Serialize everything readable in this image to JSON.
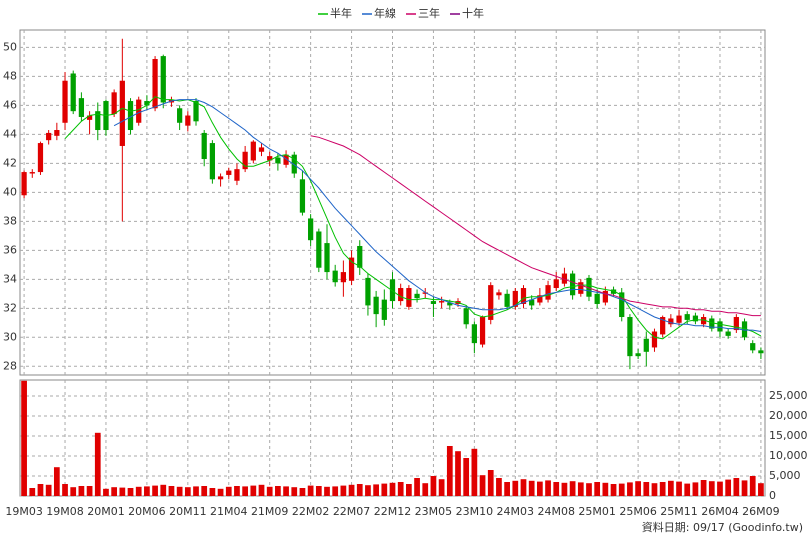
{
  "chart_data": [
    {
      "type": "candlestick",
      "legend": "top",
      "grid": true,
      "up_color": "#e00000",
      "down_color": "#00a000",
      "ylim": [
        27.4,
        51.2
      ],
      "yticks": [
        28,
        30,
        32,
        34,
        36,
        38,
        40,
        42,
        44,
        46,
        48,
        50
      ],
      "open": [
        39.8,
        41.3,
        41.4,
        43.6,
        43.9,
        44.8,
        48.2,
        46.5,
        45.0,
        45.6,
        46.3,
        45.4,
        43.2,
        46.3,
        44.8,
        46.3,
        45.8,
        49.4,
        46.2,
        45.8,
        44.6,
        46.3,
        44.1,
        43.4,
        40.9,
        41.2,
        40.8,
        41.6,
        42.2,
        42.8,
        42.2,
        42.4,
        41.9,
        42.6,
        40.9,
        38.2,
        37.3,
        36.5,
        34.6,
        33.8,
        33.9,
        36.3,
        34.1,
        32.8,
        32.6,
        34.0,
        32.5,
        32.1,
        33.0,
        33.0,
        32.5,
        32.4,
        32.4,
        32.3,
        32.0,
        30.9,
        29.5,
        31.2,
        32.9,
        33.0,
        32.1,
        32.3,
        32.6,
        32.4,
        32.6,
        33.4,
        33.7,
        34.4,
        33.0,
        34.1,
        33.0,
        32.4,
        33.3,
        33.1,
        31.4,
        28.9,
        29.9,
        29.3,
        30.2,
        30.9,
        31.0,
        31.6,
        31.5,
        30.9,
        31.3,
        31.1,
        30.4,
        30.5,
        31.1,
        29.6,
        29.1
      ],
      "high": [
        41.5,
        41.6,
        43.5,
        44.3,
        44.8,
        48.3,
        48.4,
        46.9,
        45.6,
        46.2,
        46.4,
        47.1,
        50.6,
        46.5,
        46.6,
        46.7,
        49.4,
        49.5,
        46.6,
        46.0,
        45.6,
        46.5,
        44.3,
        43.6,
        41.3,
        41.7,
        42.0,
        43.2,
        43.6,
        43.4,
        42.8,
        42.7,
        42.9,
        42.8,
        41.5,
        38.5,
        37.5,
        37.8,
        35.0,
        35.3,
        36.0,
        36.7,
        34.4,
        33.2,
        33.3,
        34.5,
        33.7,
        33.6,
        33.3,
        33.4,
        32.8,
        32.8,
        32.6,
        32.7,
        32.2,
        31.1,
        31.5,
        33.8,
        33.3,
        33.3,
        33.4,
        33.6,
        32.9,
        33.4,
        33.9,
        34.5,
        34.8,
        34.6,
        34.0,
        34.3,
        33.3,
        33.5,
        33.5,
        33.4,
        31.6,
        29.2,
        30.4,
        30.6,
        31.5,
        31.6,
        31.9,
        31.8,
        31.7,
        31.6,
        31.5,
        31.3,
        30.6,
        31.6,
        31.3,
        29.8,
        29.3
      ],
      "low": [
        39.6,
        41.0,
        41.2,
        43.3,
        43.6,
        44.3,
        45.4,
        44.9,
        44.0,
        43.6,
        43.9,
        45.2,
        38.0,
        44.0,
        44.6,
        45.7,
        45.6,
        45.8,
        45.9,
        44.3,
        44.2,
        44.6,
        41.8,
        40.6,
        40.4,
        40.9,
        40.5,
        41.4,
        42.0,
        42.5,
        41.8,
        41.5,
        41.7,
        41.0,
        38.4,
        36.3,
        34.5,
        34.0,
        33.5,
        32.8,
        33.6,
        34.3,
        31.5,
        30.7,
        30.8,
        32.0,
        32.2,
        31.9,
        32.4,
        32.7,
        31.4,
        32.0,
        31.9,
        32.1,
        30.6,
        28.9,
        29.3,
        30.9,
        32.6,
        31.9,
        31.9,
        32.0,
        31.9,
        32.2,
        32.4,
        33.2,
        33.5,
        32.6,
        32.8,
        32.5,
        32.0,
        32.2,
        32.8,
        31.1,
        27.8,
        28.5,
        28.0,
        29.0,
        30.0,
        30.7,
        30.8,
        30.9,
        30.9,
        30.7,
        30.4,
        30.0,
        29.9,
        30.3,
        29.8,
        28.9,
        28.5
      ],
      "close": [
        41.4,
        41.4,
        43.4,
        44.1,
        44.3,
        47.7,
        45.6,
        45.2,
        45.3,
        44.3,
        44.3,
        46.9,
        47.7,
        44.3,
        46.4,
        46.0,
        49.2,
        46.2,
        46.4,
        44.8,
        45.3,
        44.9,
        42.3,
        40.9,
        41.1,
        41.5,
        41.6,
        42.8,
        43.5,
        43.1,
        42.5,
        42.0,
        42.6,
        41.3,
        38.6,
        36.7,
        34.8,
        34.5,
        33.8,
        34.5,
        35.5,
        34.8,
        32.2,
        31.6,
        31.2,
        32.5,
        33.4,
        33.4,
        32.7,
        33.1,
        32.3,
        32.5,
        32.2,
        32.5,
        30.9,
        29.6,
        31.4,
        33.6,
        33.1,
        32.1,
        33.2,
        33.4,
        32.2,
        32.9,
        33.6,
        34.0,
        34.4,
        32.9,
        33.8,
        32.8,
        32.3,
        33.2,
        33.0,
        31.4,
        28.7,
        28.7,
        29.0,
        30.4,
        31.4,
        31.3,
        31.5,
        31.2,
        31.1,
        31.4,
        30.6,
        30.4,
        30.1,
        31.4,
        30.0,
        29.1,
        28.9
      ],
      "series": [
        {
          "name": "半年",
          "color": "#00c000",
          "values": [
            null,
            null,
            null,
            null,
            null,
            43.7,
            44.3,
            44.9,
            45.3,
            45.4,
            45.3,
            45.4,
            45.8,
            45.6,
            45.7,
            46.0,
            46.6,
            46.4,
            46.4,
            46.3,
            46.4,
            46.2,
            45.9,
            44.8,
            43.8,
            43.0,
            42.3,
            41.8,
            41.8,
            42.0,
            42.2,
            42.5,
            42.6,
            42.3,
            41.8,
            40.8,
            39.5,
            38.2,
            36.9,
            35.8,
            35.2,
            34.9,
            34.4,
            34.0,
            33.6,
            33.2,
            32.8,
            32.6,
            32.6,
            32.7,
            32.6,
            32.6,
            32.5,
            32.4,
            32.2,
            31.6,
            31.4,
            31.5,
            31.7,
            31.9,
            32.2,
            32.7,
            32.8,
            32.8,
            32.9,
            33.1,
            33.4,
            33.5,
            33.6,
            33.6,
            33.4,
            33.3,
            33.2,
            32.9,
            32.0,
            31.2,
            30.5,
            30.0,
            29.9,
            30.3,
            30.7,
            31.1,
            31.2,
            31.2,
            31.0,
            30.9,
            30.8,
            30.7,
            30.6,
            30.4,
            30.1
          ]
        },
        {
          "name": "年線",
          "color": "#1e64c8",
          "values": [
            null,
            null,
            null,
            null,
            null,
            null,
            null,
            null,
            null,
            null,
            null,
            44.6,
            44.9,
            45.2,
            45.5,
            45.7,
            45.9,
            46.1,
            46.3,
            46.4,
            46.4,
            46.4,
            46.2,
            45.9,
            45.5,
            45.1,
            44.7,
            44.3,
            43.8,
            43.4,
            43.0,
            42.7,
            42.3,
            41.9,
            41.5,
            40.9,
            40.3,
            39.6,
            38.9,
            38.3,
            37.7,
            37.1,
            36.5,
            35.9,
            35.4,
            34.9,
            34.4,
            33.9,
            33.5,
            33.1,
            32.8,
            32.6,
            32.4,
            32.2,
            32.1,
            32.0,
            31.9,
            31.9,
            31.9,
            32.0,
            32.2,
            32.4,
            32.6,
            32.8,
            33.0,
            33.1,
            33.2,
            33.3,
            33.3,
            33.2,
            33.1,
            33.0,
            32.8,
            32.6,
            32.3,
            32.0,
            31.7,
            31.4,
            31.2,
            31.0,
            30.9,
            30.9,
            30.8,
            30.8,
            30.7,
            30.7,
            30.6,
            30.6,
            30.5,
            30.5,
            30.4
          ]
        },
        {
          "name": "三年",
          "color": "#cc0066",
          "values": [
            null,
            null,
            null,
            null,
            null,
            null,
            null,
            null,
            null,
            null,
            null,
            null,
            null,
            null,
            null,
            null,
            null,
            null,
            null,
            null,
            null,
            null,
            null,
            null,
            null,
            null,
            null,
            null,
            null,
            null,
            null,
            null,
            null,
            null,
            null,
            43.9,
            43.8,
            43.6,
            43.4,
            43.2,
            42.9,
            42.6,
            42.2,
            41.8,
            41.4,
            41.0,
            40.6,
            40.2,
            39.8,
            39.4,
            39.0,
            38.6,
            38.2,
            37.8,
            37.4,
            37.0,
            36.6,
            36.3,
            36.0,
            35.7,
            35.4,
            35.1,
            34.8,
            34.6,
            34.4,
            34.2,
            34.0,
            33.8,
            33.6,
            33.4,
            33.2,
            33.0,
            32.9,
            32.7,
            32.5,
            32.4,
            32.3,
            32.2,
            32.1,
            32.1,
            32.0,
            32.0,
            31.9,
            31.9,
            31.8,
            31.8,
            31.7,
            31.7,
            31.6,
            31.5,
            31.5
          ]
        },
        {
          "name": "十年",
          "color": "#800080",
          "values": [
            null,
            null,
            null,
            null,
            null,
            null,
            null,
            null,
            null,
            null,
            null,
            null,
            null,
            null,
            null,
            null,
            null,
            null,
            null,
            null,
            null,
            null,
            null,
            null,
            null,
            null,
            null,
            null,
            null,
            null,
            null,
            null,
            null,
            null,
            null,
            null,
            null,
            null,
            null,
            null,
            null,
            null,
            null,
            null,
            null,
            null,
            null,
            null,
            null,
            null,
            null,
            null,
            null,
            null,
            null,
            null,
            null,
            null,
            null,
            null,
            null,
            null,
            null,
            null,
            null,
            null,
            null,
            null,
            null,
            null,
            null,
            null,
            null,
            null,
            null,
            null,
            null,
            null,
            null,
            null,
            null,
            null,
            null,
            null,
            null,
            null,
            null,
            null,
            null,
            null,
            null
          ]
        }
      ]
    },
    {
      "type": "bar",
      "grid": true,
      "color": "#e00000",
      "ylim": [
        0,
        29000
      ],
      "yticks": [
        0,
        {
          "value": 5000,
          "label": "5,000"
        },
        {
          "value": 10000,
          "label": "10,000"
        },
        {
          "value": 15000,
          "label": "15,000"
        },
        {
          "value": 20000,
          "label": "20,000"
        },
        {
          "value": 25000,
          "label": "25,000"
        }
      ],
      "categories": [
        "19M03",
        null,
        null,
        null,
        null,
        "19M08",
        null,
        null,
        null,
        null,
        "20M01",
        null,
        null,
        null,
        null,
        "20M06",
        null,
        null,
        null,
        null,
        "20M11",
        null,
        null,
        null,
        null,
        "21M04",
        null,
        null,
        null,
        null,
        "21M09",
        null,
        null,
        null,
        null,
        "22M02",
        null,
        null,
        null,
        null,
        "22M07",
        null,
        null,
        null,
        null,
        "22M12",
        null,
        null,
        null,
        null,
        "23M05",
        null,
        null,
        null,
        null,
        "23M10",
        null,
        null,
        null,
        null,
        "24M03",
        null,
        null,
        null,
        null,
        "24M08",
        null,
        null,
        null,
        null,
        "25M01",
        null,
        null,
        null,
        null,
        "25M06",
        null,
        null,
        null,
        null,
        "25M11",
        null,
        null,
        null,
        null,
        "26M04",
        null,
        null,
        null,
        null,
        "26M09"
      ],
      "values": [
        28800,
        2000,
        3000,
        2800,
        7200,
        3000,
        2200,
        2500,
        2500,
        15800,
        1800,
        2200,
        2100,
        2000,
        2300,
        2400,
        2600,
        2800,
        2500,
        2300,
        2200,
        2400,
        2500,
        2000,
        1800,
        2300,
        2500,
        2400,
        2600,
        2800,
        2300,
        2500,
        2400,
        2200,
        2000,
        2600,
        2500,
        2300,
        2400,
        2600,
        2800,
        3000,
        2700,
        2900,
        3100,
        3300,
        3500,
        3000,
        4500,
        3200,
        5000,
        4200,
        12500,
        11200,
        9500,
        11800,
        5200,
        6500,
        4500,
        3500,
        3800,
        4200,
        3800,
        3600,
        3900,
        3500,
        3300,
        3700,
        3400,
        3200,
        3500,
        3300,
        3000,
        3100,
        3400,
        3700,
        3500,
        3200,
        3500,
        3800,
        3600,
        3100,
        3400,
        4000,
        3700,
        3600,
        4100,
        4500,
        3900,
        5000,
        3200
      ],
      "note": "資料日期: 09/17  (Goodinfo.tw)"
    }
  ]
}
